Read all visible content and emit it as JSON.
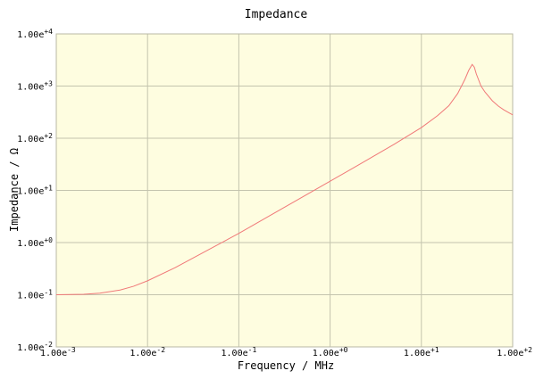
{
  "chart_data": {
    "type": "line",
    "title": "Impedance",
    "xlabel": "Frequency / MHz",
    "ylabel": "Impedance / Ω",
    "x_scale": "log",
    "y_scale": "log",
    "xlim": [
      0.001,
      100
    ],
    "ylim": [
      0.01,
      10000
    ],
    "grid": true,
    "x_ticks": [
      {
        "mantissa": "1.00e",
        "exponent": "-3"
      },
      {
        "mantissa": "1.00e",
        "exponent": "-2"
      },
      {
        "mantissa": "1.00e",
        "exponent": "-1"
      },
      {
        "mantissa": "1.00e",
        "exponent": "+0"
      },
      {
        "mantissa": "1.00e",
        "exponent": "+1"
      },
      {
        "mantissa": "1.00e",
        "exponent": "+2"
      }
    ],
    "y_ticks": [
      {
        "mantissa": "1.00e",
        "exponent": "+4"
      },
      {
        "mantissa": "1.00e",
        "exponent": "+3"
      },
      {
        "mantissa": "1.00e",
        "exponent": "+2"
      },
      {
        "mantissa": "1.00e",
        "exponent": "+1"
      },
      {
        "mantissa": "1.00e",
        "exponent": "+0"
      },
      {
        "mantissa": "1.00e",
        "exponent": "-1"
      },
      {
        "mantissa": "1.00e",
        "exponent": "-2"
      }
    ],
    "series": [
      {
        "x": [
          0.001,
          0.002,
          0.003,
          0.005,
          0.007,
          0.01,
          0.02,
          0.05,
          0.1,
          0.2,
          0.5,
          1,
          2,
          5,
          10,
          15,
          20,
          25,
          30,
          33,
          36,
          38,
          40,
          45,
          50,
          60,
          70,
          80,
          100
        ],
        "values": [
          0.1,
          0.102,
          0.107,
          0.123,
          0.145,
          0.185,
          0.33,
          0.78,
          1.5,
          3.0,
          7.5,
          15,
          30,
          76,
          160,
          270,
          420,
          720,
          1350,
          2000,
          2600,
          2300,
          1700,
          1000,
          760,
          520,
          410,
          350,
          280
        ]
      }
    ],
    "colors": {
      "background": "#ffffff",
      "plot_bg": "#fefde0",
      "grid": "#c4c4ae",
      "line": "#f07878",
      "frame": "#b8b8a4"
    }
  }
}
